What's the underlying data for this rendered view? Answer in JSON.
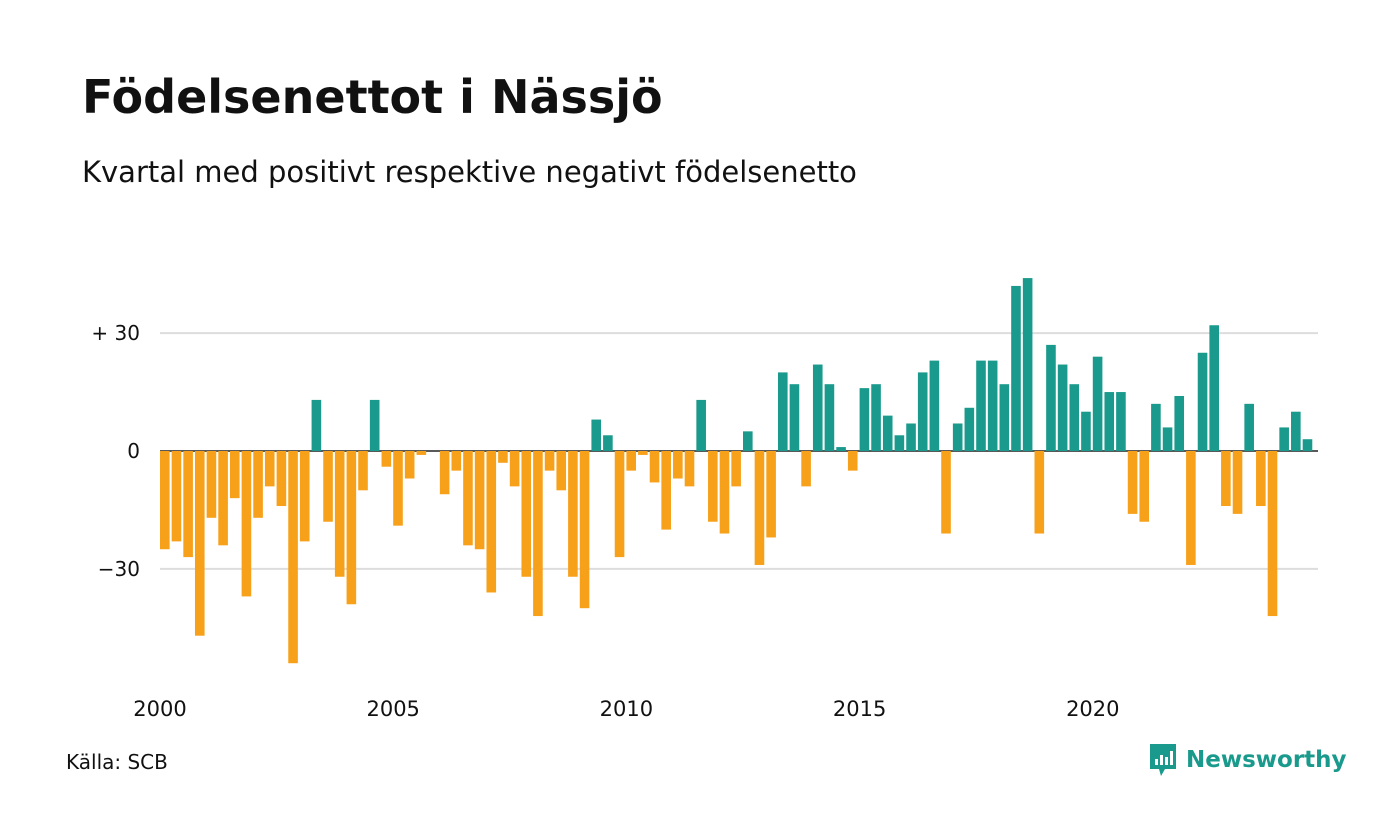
{
  "title": "Födelsenettot i Nässjö",
  "subtitle": "Kvartal med positivt respektive negativt födelsenetto",
  "source": "Källa: SCB",
  "brand": "Newsworthy",
  "colors": {
    "positive": "#1a9a8c",
    "negative": "#f7a11a",
    "grid": "#dddddd",
    "brand": "#1a9a8c"
  },
  "chart_data": {
    "type": "bar",
    "x_start": "2000 Q1",
    "ylim": [
      -57,
      45
    ],
    "yticks": [
      {
        "value": 30,
        "label": "+ 30"
      },
      {
        "value": 0,
        "label": "0"
      },
      {
        "value": -30,
        "label": "−30"
      }
    ],
    "xticks": [
      "2000",
      "2005",
      "2010",
      "2015",
      "2020"
    ],
    "values": [
      -25,
      -23,
      -27,
      -47,
      -17,
      -24,
      -12,
      -37,
      -17,
      -9,
      -14,
      -54,
      -23,
      13,
      -18,
      -32,
      -39,
      -10,
      13,
      -4,
      -19,
      -7,
      -1,
      0,
      -11,
      -5,
      -24,
      -25,
      -36,
      -3,
      -9,
      -32,
      -42,
      -5,
      -10,
      -32,
      -40,
      8,
      4,
      -27,
      -5,
      -1,
      -8,
      -20,
      -7,
      -9,
      13,
      -18,
      -21,
      -9,
      5,
      -29,
      -22,
      20,
      17,
      -9,
      22,
      17,
      1,
      -5,
      16,
      17,
      9,
      4,
      7,
      20,
      23,
      -21,
      7,
      11,
      23,
      23,
      17,
      42,
      44,
      -21,
      27,
      22,
      17,
      10,
      24,
      15,
      15,
      -16,
      -18,
      12,
      6,
      14,
      -29,
      25,
      32,
      -14,
      -16,
      12,
      -14,
      -42,
      6,
      10,
      3
    ]
  }
}
